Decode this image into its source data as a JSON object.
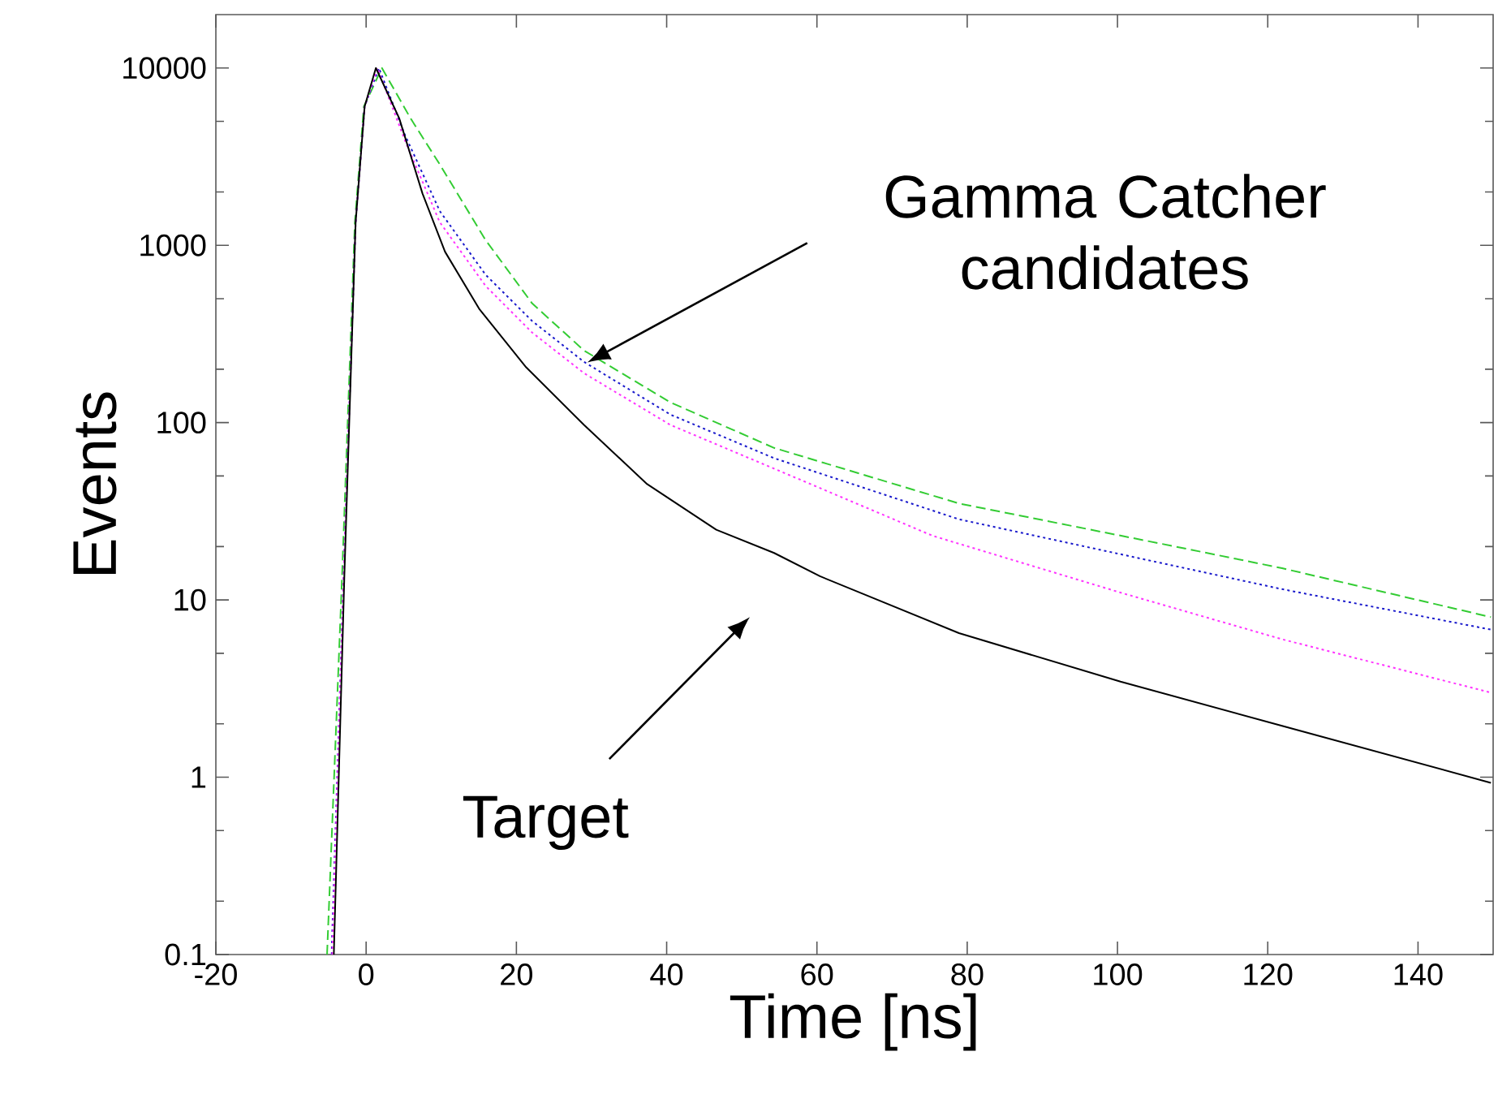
{
  "chart_data": {
    "type": "line",
    "xlabel": "Time [ns]",
    "ylabel": "Events",
    "log": "y",
    "xlim": [
      -20,
      150
    ],
    "ylim": [
      0.1,
      20000
    ],
    "xticks": [
      -20,
      0,
      20,
      40,
      60,
      80,
      100,
      120,
      140
    ],
    "yticks": [
      0.1,
      1,
      10,
      100,
      1000,
      10000
    ],
    "grid": false,
    "series": [
      {
        "color": "#33cc33",
        "line_style": "dashed",
        "x": [
          -5.2,
          -3.2,
          -1.5,
          -0.3,
          2.1,
          5.9,
          9.8,
          15.9,
          22.1,
          29.0,
          40.5,
          54.3,
          78.9,
          107.7,
          121.9,
          149.7
        ],
        "values": [
          0.1,
          13.6,
          1340,
          6060,
          10000,
          5210,
          2860,
          1070,
          470,
          255,
          130,
          72,
          35,
          20,
          15.1,
          8.0
        ]
      },
      {
        "color": "#1a1acc",
        "line_style": "dotted",
        "x": [
          -4.6,
          -3.0,
          -1.4,
          -0.2,
          1.7,
          5.2,
          9.8,
          15.9,
          22.1,
          29.0,
          40.5,
          54.3,
          78.9,
          121.9,
          149.7
        ],
        "values": [
          0.1,
          13.6,
          1340,
          6060,
          10000,
          4160,
          1560,
          682,
          374,
          220,
          111,
          63,
          28.5,
          11.5,
          6.8
        ]
      },
      {
        "color": "#ff33ff",
        "line_style": "dotted",
        "x": [
          -4.5,
          -3.0,
          -1.4,
          -0.2,
          1.5,
          5.2,
          9.8,
          15.9,
          22.1,
          29.0,
          40.5,
          54.3,
          75.4,
          100.4,
          121.9,
          149.7
        ],
        "values": [
          0.1,
          13.6,
          1340,
          6060,
          10000,
          3870,
          1350,
          590,
          322,
          190,
          97,
          55,
          23,
          11,
          6,
          3.0
        ]
      },
      {
        "color": "#000000",
        "line_style": "solid",
        "x": [
          -4.3,
          -2.9,
          -1.4,
          -0.2,
          1.3,
          4.4,
          7.5,
          10.5,
          15.1,
          21.3,
          29.0,
          37.4,
          46.6,
          54.3,
          60.4,
          78.9,
          100.4,
          121.9,
          149.7
        ],
        "values": [
          0.1,
          13.6,
          1340,
          6060,
          10000,
          5210,
          1960,
          920,
          435,
          205,
          97,
          45,
          24.9,
          18.4,
          13.6,
          6.5,
          3.46,
          1.95,
          0.93
        ]
      }
    ],
    "annotations": [
      "Gamma Catcher candidates",
      "Target"
    ]
  }
}
